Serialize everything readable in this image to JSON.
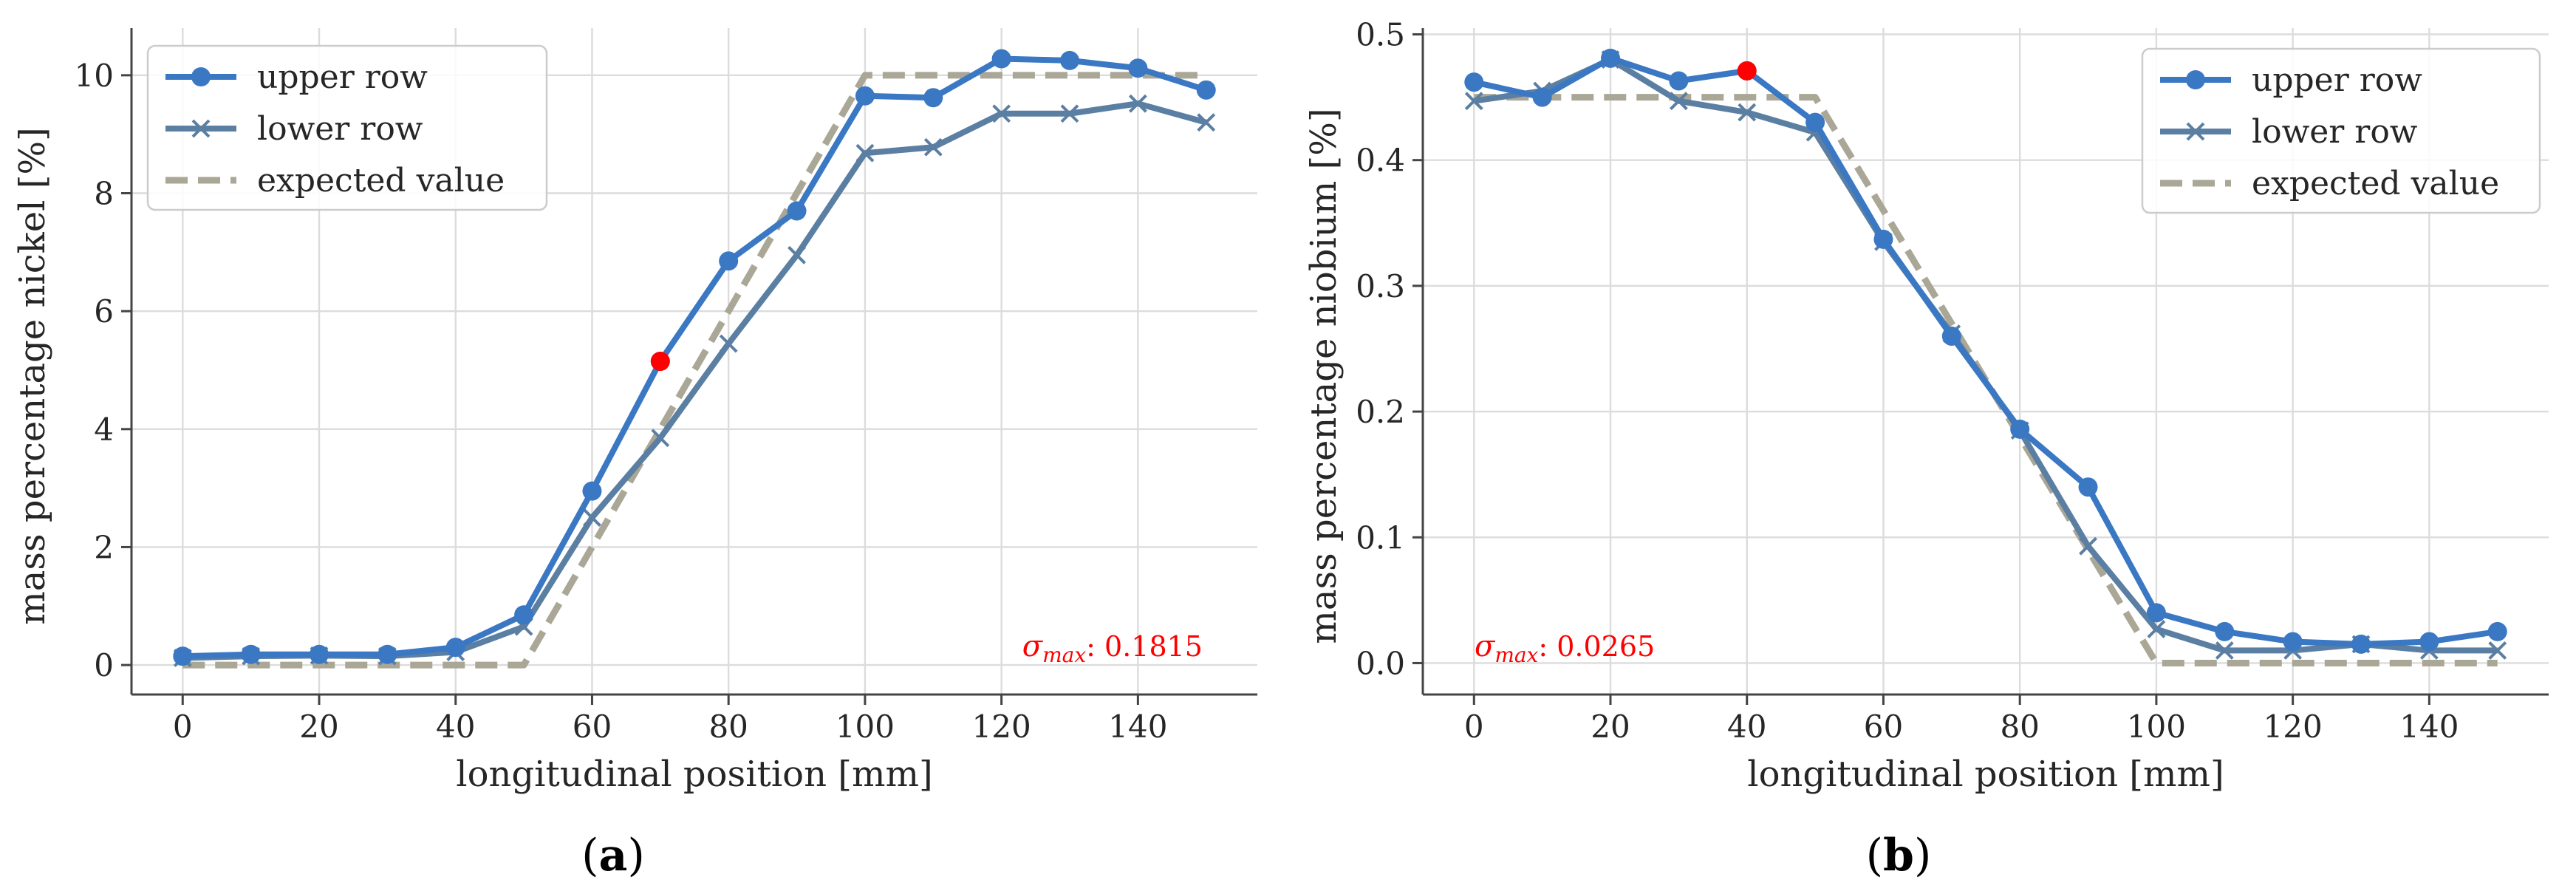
{
  "colors": {
    "upper": "#3b78c3",
    "lower": "#5b7fa2",
    "expected": "#aaa797",
    "highlight": "#ff0000",
    "grid": "#dcdcdc",
    "axis": "#444444",
    "text": "#262626"
  },
  "chart_data": [
    {
      "type": "line",
      "panel": "a",
      "caption": "(a)",
      "caption_parts": [
        "(",
        "a",
        ")"
      ],
      "title": "",
      "xlabel": "longitudinal position [mm]",
      "ylabel": "mass percentage nickel [%]",
      "xlim": [
        -7.5,
        157.5
      ],
      "ylim": [
        -0.5,
        10.8
      ],
      "xticks": [
        0,
        20,
        40,
        60,
        80,
        100,
        120,
        140
      ],
      "xtick_labels": [
        "0",
        "20",
        "40",
        "60",
        "80",
        "100",
        "120",
        "140"
      ],
      "yticks": [
        0,
        2,
        4,
        6,
        8,
        10
      ],
      "ytick_labels": [
        "0",
        "2",
        "4",
        "6",
        "8",
        "10"
      ],
      "grid": true,
      "legend_position": "top-left",
      "annotation": {
        "symbol": "σ",
        "subscript": "max",
        "value": ": 0.1815",
        "position": "bottom-right"
      },
      "highlight_point": {
        "series": "upper row",
        "x": 70,
        "y": 5.15
      },
      "series": [
        {
          "name": "upper row",
          "marker": "circle",
          "x": [
            0,
            10,
            20,
            30,
            40,
            50,
            60,
            70,
            80,
            90,
            100,
            110,
            120,
            130,
            140,
            150
          ],
          "y": [
            0.15,
            0.18,
            0.18,
            0.18,
            0.3,
            0.85,
            2.95,
            5.15,
            6.85,
            7.7,
            9.65,
            9.62,
            10.28,
            10.25,
            10.12,
            9.75
          ]
        },
        {
          "name": "lower row",
          "marker": "x",
          "x": [
            0,
            10,
            20,
            30,
            40,
            50,
            60,
            70,
            80,
            90,
            100,
            110,
            120,
            130,
            140,
            150
          ],
          "y": [
            0.12,
            0.15,
            0.16,
            0.15,
            0.22,
            0.65,
            2.5,
            3.85,
            5.45,
            6.95,
            8.68,
            8.78,
            9.35,
            9.35,
            9.52,
            9.2
          ]
        },
        {
          "name": "expected value",
          "marker": "none",
          "dashed": true,
          "x": [
            0,
            50,
            100,
            150
          ],
          "y": [
            0,
            0,
            10,
            10
          ]
        }
      ]
    },
    {
      "type": "line",
      "panel": "b",
      "caption": "(b)",
      "caption_parts": [
        "(",
        "b",
        ")"
      ],
      "title": "",
      "xlabel": "longitudinal position [mm]",
      "ylabel": "mass percentage niobium [%]",
      "xlim": [
        -7.5,
        157.5
      ],
      "ylim": [
        -0.025,
        0.505
      ],
      "xticks": [
        0,
        20,
        40,
        60,
        80,
        100,
        120,
        140
      ],
      "xtick_labels": [
        "0",
        "20",
        "40",
        "60",
        "80",
        "100",
        "120",
        "140"
      ],
      "yticks": [
        0.0,
        0.1,
        0.2,
        0.3,
        0.4,
        0.5
      ],
      "ytick_labels": [
        "0.0",
        "0.1",
        "0.2",
        "0.3",
        "0.4",
        "0.5"
      ],
      "grid": true,
      "legend_position": "top-right",
      "annotation": {
        "symbol": "σ",
        "subscript": "max",
        "value": ": 0.0265",
        "position": "bottom-left"
      },
      "highlight_point": {
        "series": "upper row",
        "x": 40,
        "y": 0.471
      },
      "series": [
        {
          "name": "upper row",
          "marker": "circle",
          "x": [
            0,
            10,
            20,
            30,
            40,
            50,
            60,
            70,
            80,
            90,
            100,
            110,
            120,
            130,
            140,
            150
          ],
          "y": [
            0.462,
            0.45,
            0.481,
            0.463,
            0.471,
            0.43,
            0.337,
            0.26,
            0.186,
            0.14,
            0.04,
            0.025,
            0.017,
            0.015,
            0.017,
            0.025
          ]
        },
        {
          "name": "lower row",
          "marker": "x",
          "x": [
            0,
            10,
            20,
            30,
            40,
            50,
            60,
            70,
            80,
            90,
            100,
            110,
            120,
            130,
            140,
            150
          ],
          "y": [
            0.447,
            0.455,
            0.48,
            0.447,
            0.438,
            0.422,
            0.335,
            0.262,
            0.185,
            0.093,
            0.027,
            0.01,
            0.01,
            0.015,
            0.01,
            0.01
          ]
        },
        {
          "name": "expected value",
          "marker": "none",
          "dashed": true,
          "x": [
            0,
            50,
            100,
            150
          ],
          "y": [
            0.45,
            0.45,
            0,
            0
          ]
        }
      ]
    }
  ]
}
